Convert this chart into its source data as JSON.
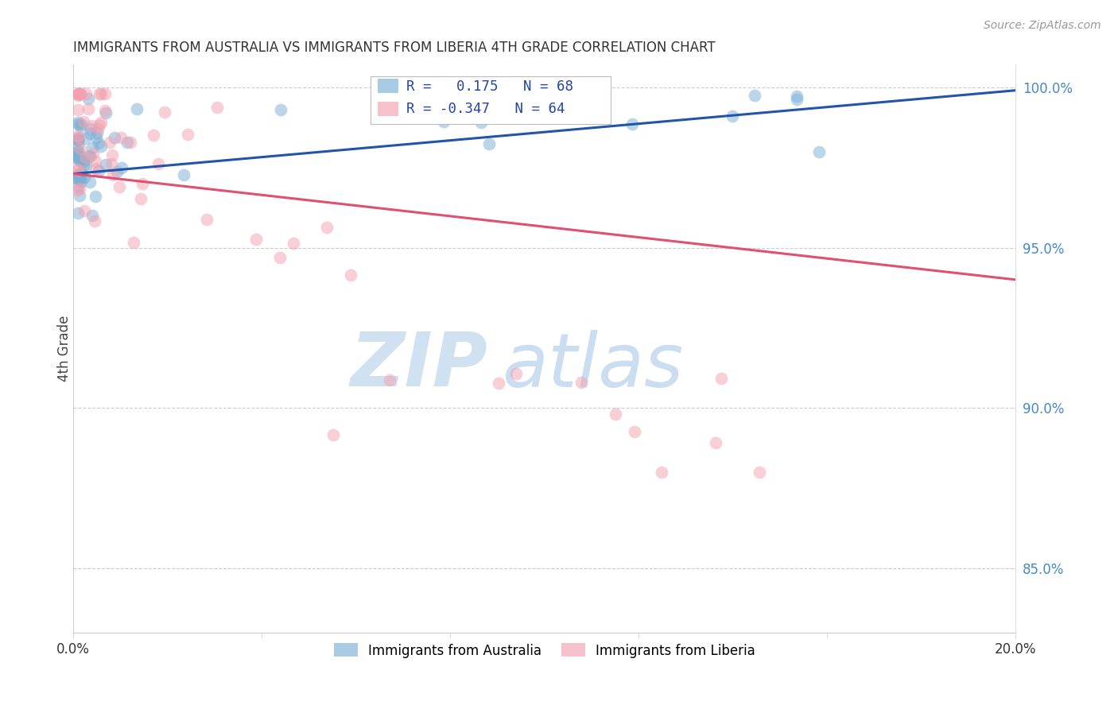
{
  "title": "IMMIGRANTS FROM AUSTRALIA VS IMMIGRANTS FROM LIBERIA 4TH GRADE CORRELATION CHART",
  "source": "Source: ZipAtlas.com",
  "ylabel": "4th Grade",
  "xmin": 0.0,
  "xmax": 0.2,
  "ymin": 0.83,
  "ymax": 1.007,
  "yticks": [
    0.85,
    0.9,
    0.95,
    1.0
  ],
  "ytick_labels": [
    "85.0%",
    "90.0%",
    "95.0%",
    "100.0%"
  ],
  "australia_R": 0.175,
  "australia_N": 68,
  "liberia_R": -0.347,
  "liberia_N": 64,
  "australia_color": "#7BAFD4",
  "liberia_color": "#F4A0B0",
  "australia_line_color": "#2255AA",
  "liberia_line_color": "#E05070",
  "watermark_zip": "ZIP",
  "watermark_atlas": "atlas",
  "background_color": "#FFFFFF",
  "grid_color": "#CCCCCC",
  "aus_line_y0": 0.973,
  "aus_line_y1": 0.999,
  "lib_line_y0": 0.973,
  "lib_line_y1": 0.94
}
